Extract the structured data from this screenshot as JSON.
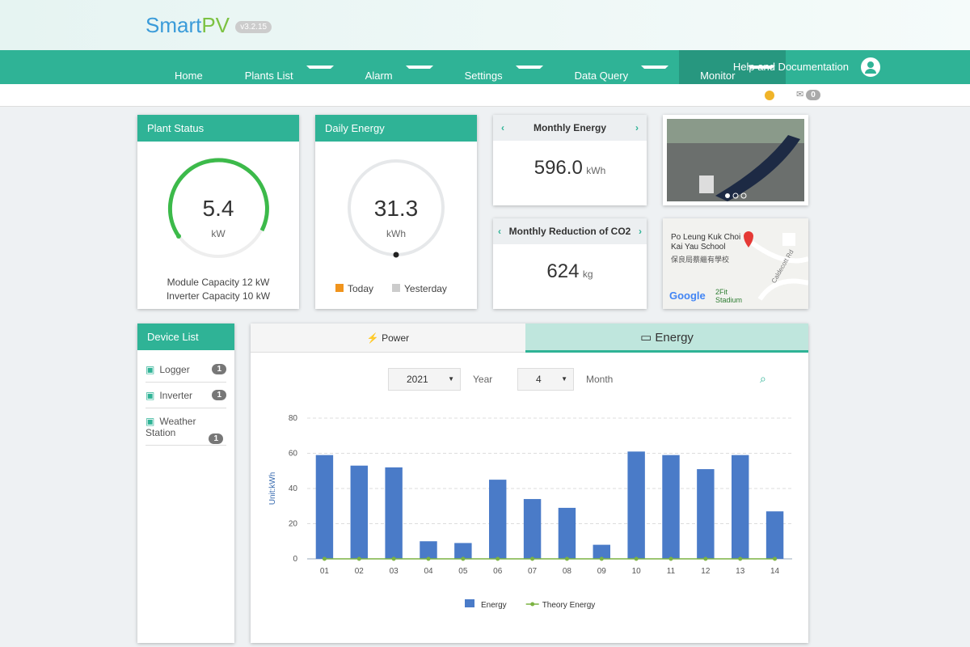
{
  "header": {
    "brand_a": "Smart",
    "brand_b": "PV",
    "version": "v3.2.15",
    "nav": [
      "Home",
      "Plants List",
      "Alarm",
      "Settings",
      "Data Query",
      "Monitor"
    ],
    "help": "Help and Documentation",
    "mail_count": "0"
  },
  "plant_status": {
    "title": "Plant Status",
    "value": "5.4",
    "unit": "kW",
    "module": "Module Capacity 12 kW",
    "inverter": "Inverter Capacity 10 kW"
  },
  "daily_energy": {
    "title": "Daily Energy",
    "value": "31.3",
    "unit": "kWh",
    "today": "Today",
    "yesterday": "Yesterday"
  },
  "monthly_energy": {
    "title": "Monthly Energy",
    "value": "596.0",
    "unit": "kWh"
  },
  "monthly_co2": {
    "title": "Monthly Reduction of CO2",
    "value": "624",
    "unit": "kg"
  },
  "map": {
    "place": "Po Leung Kuk Choi Kai Yau School",
    "place_zh": "保良局蔡繼有學校",
    "road": "Caldecott Rd",
    "stadium": "2Fit Stadium",
    "google": "Google"
  },
  "device_list": {
    "title": "Device List",
    "items": [
      {
        "name": "Logger",
        "count": "1"
      },
      {
        "name": "Inverter",
        "count": "1"
      },
      {
        "name": "Weather Station",
        "count": "1"
      }
    ]
  },
  "tabs": [
    "Power",
    "Energy"
  ],
  "selectors": {
    "year": "2021",
    "year_label": "Year",
    "month": "4",
    "month_label": "Month"
  },
  "chart_data": {
    "type": "bar",
    "y_label": "Unit:kWh",
    "categories": [
      "01",
      "02",
      "03",
      "04",
      "05",
      "06",
      "07",
      "08",
      "09",
      "10",
      "11",
      "12",
      "13",
      "14"
    ],
    "series": [
      {
        "name": "Energy",
        "color": "#4a7bc8",
        "values": [
          59,
          53,
          52,
          10,
          9,
          45,
          34,
          29,
          8,
          61,
          59,
          51,
          59,
          27
        ]
      },
      {
        "name": "Theory Energy",
        "color": "#7cb342",
        "type": "line",
        "values": [
          0,
          0,
          0,
          0,
          0,
          0,
          0,
          0,
          0,
          0,
          0,
          0,
          0,
          0
        ]
      }
    ],
    "ylim": [
      0,
      80
    ],
    "yticks": [
      0,
      20,
      40,
      60,
      80
    ],
    "grid": true
  }
}
